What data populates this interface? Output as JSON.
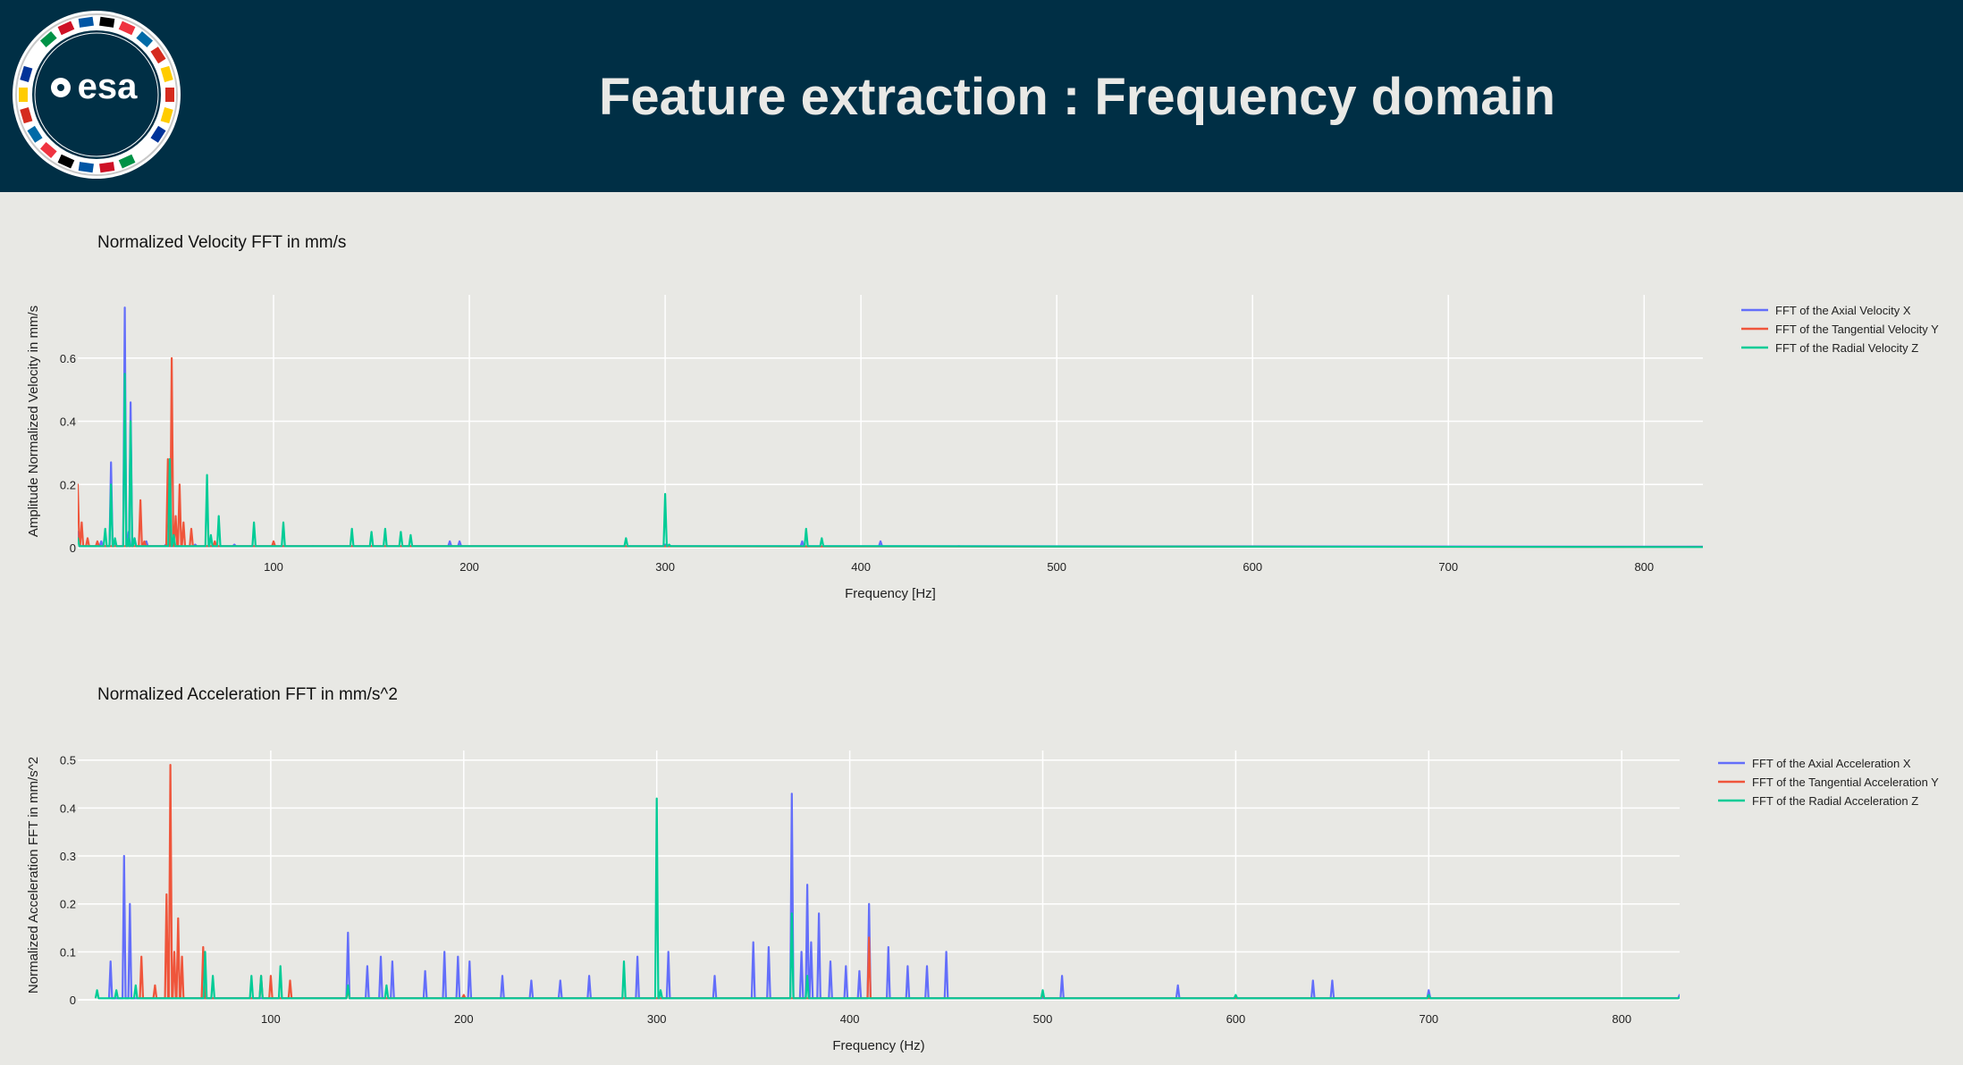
{
  "header": {
    "title": "Feature extraction : Frequency domain",
    "logo_text": "esa",
    "background": "#002f45"
  },
  "chart_data": [
    {
      "type": "line",
      "title": "Normalized Velocity FFT in mm/s",
      "xlabel": "Frequency [Hz]",
      "ylabel": "Amplitude Normalized Velocity in mm/s",
      "xlim": [
        0,
        830
      ],
      "ylim": [
        0,
        0.8
      ],
      "xticks": [
        100,
        200,
        300,
        400,
        500,
        600,
        700,
        800
      ],
      "yticks": [
        0,
        0.2,
        0.4,
        0.6
      ],
      "grid": true,
      "legend_position": "top-right",
      "series": [
        {
          "name": "FFT of the Axial Velocity X",
          "color": "#636efa",
          "points": [
            [
              0,
              0.05
            ],
            [
              12,
              0.02
            ],
            [
              17,
              0.27
            ],
            [
              19,
              0.02
            ],
            [
              24,
              0.76
            ],
            [
              26,
              0.05
            ],
            [
              27,
              0.46
            ],
            [
              29,
              0.03
            ],
            [
              35,
              0.02
            ],
            [
              45,
              0.01
            ],
            [
              60,
              0.01
            ],
            [
              80,
              0.01
            ],
            [
              120,
              0.005
            ],
            [
              190,
              0.02
            ],
            [
              195,
              0.02
            ],
            [
              300,
              0.01
            ],
            [
              370,
              0.02
            ],
            [
              410,
              0.02
            ],
            [
              450,
              0.005
            ],
            [
              830,
              0.003
            ]
          ]
        },
        {
          "name": "FFT of the Tangential Velocity Y",
          "color": "#ef553b",
          "points": [
            [
              0,
              0.2
            ],
            [
              2,
              0.08
            ],
            [
              5,
              0.03
            ],
            [
              10,
              0.02
            ],
            [
              32,
              0.15
            ],
            [
              34,
              0.02
            ],
            [
              46,
              0.28
            ],
            [
              48,
              0.6
            ],
            [
              50,
              0.1
            ],
            [
              52,
              0.2
            ],
            [
              54,
              0.08
            ],
            [
              58,
              0.06
            ],
            [
              70,
              0.02
            ],
            [
              100,
              0.02
            ],
            [
              150,
              0.005
            ],
            [
              830,
              0.002
            ]
          ]
        },
        {
          "name": "FFT of the Radial Velocity Z",
          "color": "#00cc96",
          "points": [
            [
              0,
              0.03
            ],
            [
              14,
              0.06
            ],
            [
              17,
              0.2
            ],
            [
              19,
              0.03
            ],
            [
              24,
              0.55
            ],
            [
              26,
              0.03
            ],
            [
              27,
              0.4
            ],
            [
              29,
              0.03
            ],
            [
              47,
              0.28
            ],
            [
              49,
              0.04
            ],
            [
              66,
              0.23
            ],
            [
              68,
              0.04
            ],
            [
              72,
              0.1
            ],
            [
              90,
              0.08
            ],
            [
              105,
              0.08
            ],
            [
              140,
              0.06
            ],
            [
              150,
              0.05
            ],
            [
              157,
              0.06
            ],
            [
              165,
              0.05
            ],
            [
              170,
              0.04
            ],
            [
              280,
              0.03
            ],
            [
              300,
              0.17
            ],
            [
              302,
              0.01
            ],
            [
              372,
              0.06
            ],
            [
              380,
              0.03
            ],
            [
              500,
              0.004
            ],
            [
              830,
              0.002
            ]
          ]
        }
      ]
    },
    {
      "type": "line",
      "title": "Normalized Acceleration FFT in mm/s^2",
      "xlabel": "Frequency (Hz)",
      "ylabel": "Normalized Acceleration FFT in mm/s^2",
      "xlim": [
        0,
        830
      ],
      "ylim": [
        0,
        0.52
      ],
      "xticks": [
        100,
        200,
        300,
        400,
        500,
        600,
        700,
        800
      ],
      "yticks": [
        0,
        0.1,
        0.2,
        0.3,
        0.4,
        0.5
      ],
      "grid": true,
      "legend_position": "top-right",
      "series": [
        {
          "name": "FFT of the Axial Acceleration X",
          "color": "#636efa",
          "points": [
            [
              17,
              0.08
            ],
            [
              24,
              0.3
            ],
            [
              27,
              0.2
            ],
            [
              140,
              0.14
            ],
            [
              150,
              0.07
            ],
            [
              157,
              0.09
            ],
            [
              163,
              0.08
            ],
            [
              180,
              0.06
            ],
            [
              190,
              0.1
            ],
            [
              197,
              0.09
            ],
            [
              203,
              0.08
            ],
            [
              220,
              0.05
            ],
            [
              235,
              0.04
            ],
            [
              250,
              0.04
            ],
            [
              265,
              0.05
            ],
            [
              290,
              0.09
            ],
            [
              306,
              0.1
            ],
            [
              330,
              0.05
            ],
            [
              350,
              0.12
            ],
            [
              358,
              0.11
            ],
            [
              370,
              0.43
            ],
            [
              375,
              0.1
            ],
            [
              378,
              0.24
            ],
            [
              380,
              0.12
            ],
            [
              384,
              0.18
            ],
            [
              390,
              0.08
            ],
            [
              398,
              0.07
            ],
            [
              405,
              0.06
            ],
            [
              410,
              0.2
            ],
            [
              420,
              0.11
            ],
            [
              430,
              0.07
            ],
            [
              440,
              0.07
            ],
            [
              450,
              0.1
            ],
            [
              510,
              0.05
            ],
            [
              570,
              0.03
            ],
            [
              640,
              0.04
            ],
            [
              650,
              0.04
            ],
            [
              700,
              0.02
            ],
            [
              830,
              0.01
            ]
          ]
        },
        {
          "name": "FFT of the Tangential Acceleration Y",
          "color": "#ef553b",
          "points": [
            [
              33,
              0.09
            ],
            [
              40,
              0.03
            ],
            [
              46,
              0.22
            ],
            [
              48,
              0.49
            ],
            [
              50,
              0.1
            ],
            [
              52,
              0.17
            ],
            [
              54,
              0.09
            ],
            [
              65,
              0.11
            ],
            [
              95,
              0.05
            ],
            [
              100,
              0.05
            ],
            [
              110,
              0.04
            ],
            [
              140,
              0.02
            ],
            [
              200,
              0.01
            ],
            [
              410,
              0.13
            ],
            [
              500,
              0.01
            ],
            [
              830,
              0.005
            ]
          ]
        },
        {
          "name": "FFT of the Radial Acceleration Z",
          "color": "#00cc96",
          "points": [
            [
              10,
              0.02
            ],
            [
              20,
              0.02
            ],
            [
              30,
              0.03
            ],
            [
              66,
              0.1
            ],
            [
              70,
              0.05
            ],
            [
              90,
              0.05
            ],
            [
              95,
              0.05
            ],
            [
              105,
              0.07
            ],
            [
              140,
              0.03
            ],
            [
              160,
              0.03
            ],
            [
              283,
              0.08
            ],
            [
              300,
              0.42
            ],
            [
              302,
              0.02
            ],
            [
              370,
              0.18
            ],
            [
              378,
              0.05
            ],
            [
              500,
              0.02
            ],
            [
              600,
              0.01
            ],
            [
              700,
              0.01
            ],
            [
              830,
              0.005
            ]
          ]
        }
      ]
    }
  ]
}
